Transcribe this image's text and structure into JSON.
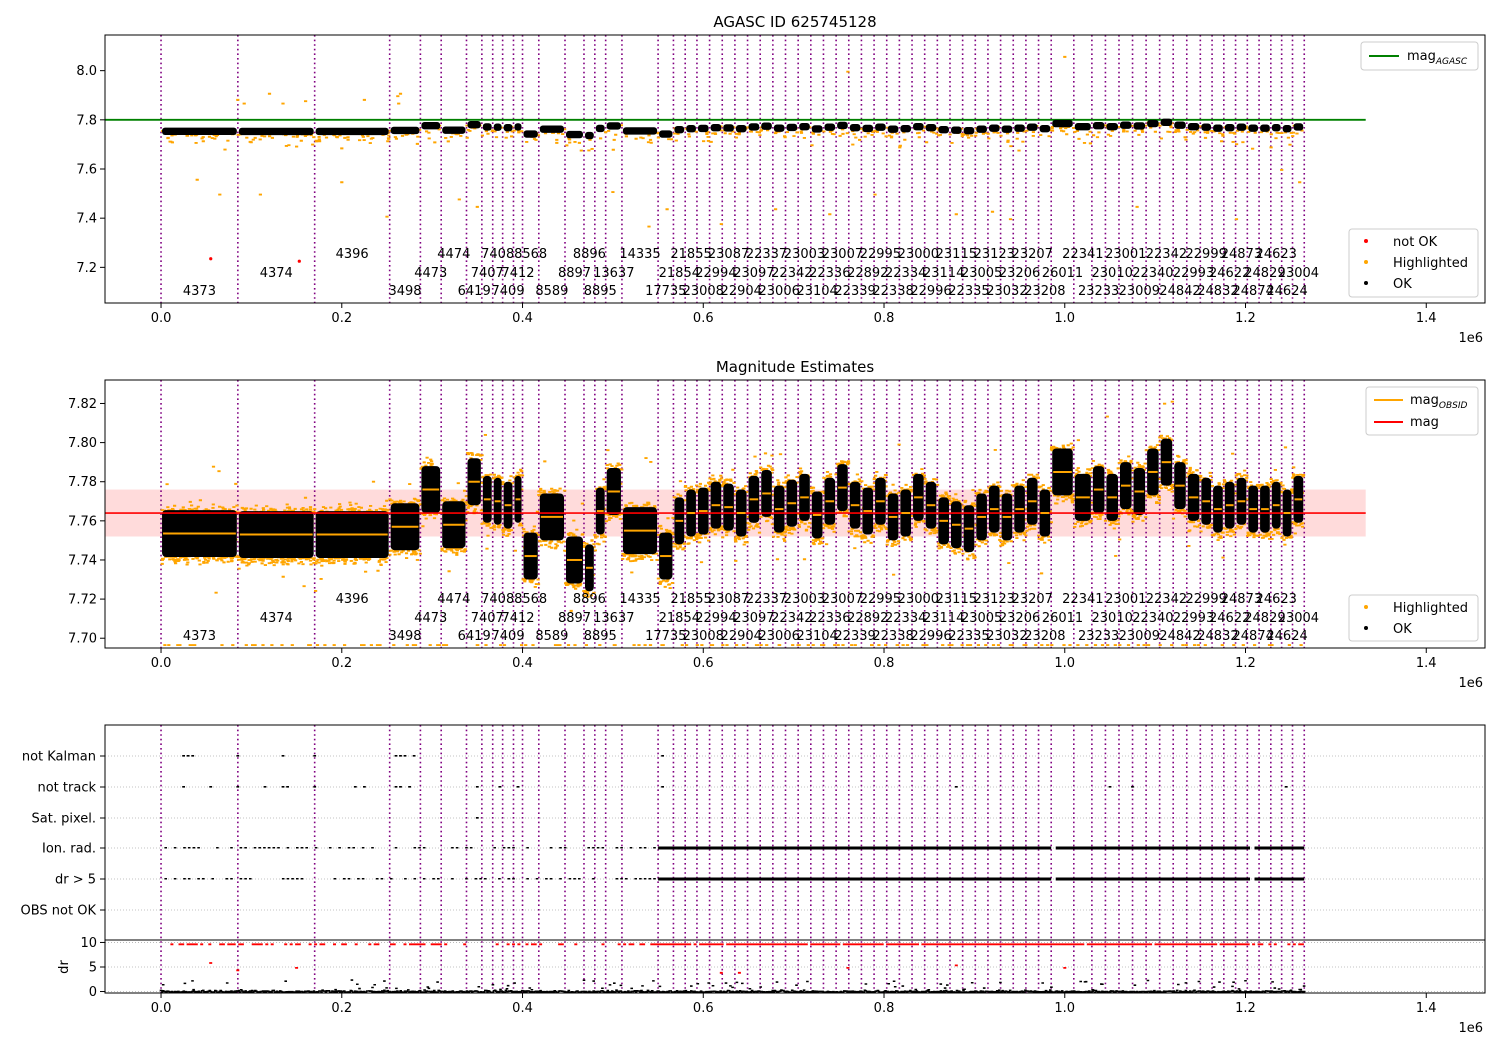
{
  "chart_data": [
    {
      "type": "scatter",
      "title": "AGASC ID 625745128",
      "xlim": [
        -62000,
        1465000
      ],
      "ylim": [
        7.055,
        8.145
      ],
      "yticks": [
        7.2,
        7.4,
        7.6,
        7.8,
        8.0
      ],
      "ytick_labels": [
        "7.2",
        "7.4",
        "7.6",
        "7.8",
        "8.0"
      ],
      "xticks": [
        0,
        200000,
        400000,
        600000,
        800000,
        1000000,
        1200000,
        1400000
      ],
      "xtick_labels": [
        "0.0",
        "0.2",
        "0.4",
        "0.6",
        "0.8",
        "1.0",
        "1.2",
        "1.4"
      ],
      "x_offset_label": "1e6",
      "legend_upper": {
        "placement": "upper-right",
        "entries": [
          {
            "label": "mag",
            "sub": "AGASC",
            "color": "#008000"
          }
        ]
      },
      "legend_lower": {
        "placement": "lower-right",
        "entries": [
          {
            "label": "not OK",
            "color": "#ff0000"
          },
          {
            "label": "Highlighted",
            "color": "#ffa500"
          },
          {
            "label": "OK",
            "color": "#000000"
          }
        ]
      },
      "mag_agasc": 7.8,
      "mag_agasc_xrange": [
        -62000,
        1333000
      ],
      "not_ok_points": [
        [
          55000,
          7.235
        ],
        [
          153000,
          7.225
        ]
      ],
      "highlight_outliers": [
        [
          85000,
          7.885
        ],
        [
          92000,
          7.87
        ],
        [
          120000,
          7.91
        ],
        [
          135000,
          7.87
        ],
        [
          160000,
          7.88
        ],
        [
          225000,
          7.885
        ],
        [
          262000,
          7.9
        ],
        [
          263000,
          7.87
        ],
        [
          265000,
          7.91
        ],
        [
          760000,
          8.0
        ],
        [
          1000000,
          8.06
        ],
        [
          40000,
          7.56
        ],
        [
          65000,
          7.5
        ],
        [
          110000,
          7.5
        ],
        [
          200000,
          7.55
        ],
        [
          250000,
          7.41
        ],
        [
          330000,
          7.48
        ],
        [
          350000,
          7.45
        ],
        [
          500000,
          7.51
        ],
        [
          540000,
          7.37
        ],
        [
          560000,
          7.44
        ],
        [
          620000,
          7.38
        ],
        [
          680000,
          7.44
        ],
        [
          740000,
          7.42
        ],
        [
          790000,
          7.5
        ],
        [
          880000,
          7.42
        ],
        [
          920000,
          7.43
        ],
        [
          940000,
          7.4
        ],
        [
          1080000,
          7.45
        ],
        [
          1190000,
          7.4
        ],
        [
          1240000,
          7.6
        ],
        [
          1260000,
          7.55
        ]
      ]
    },
    {
      "type": "scatter",
      "title": "Magnitude Estimates",
      "xlim": [
        -62000,
        1465000
      ],
      "ylim": [
        7.695,
        7.832
      ],
      "yticks": [
        7.7,
        7.72,
        7.74,
        7.76,
        7.78,
        7.8,
        7.82
      ],
      "ytick_labels": [
        "7.70",
        "7.72",
        "7.74",
        "7.76",
        "7.78",
        "7.80",
        "7.82"
      ],
      "xticks": [
        0,
        200000,
        400000,
        600000,
        800000,
        1000000,
        1200000,
        1400000
      ],
      "xtick_labels": [
        "0.0",
        "0.2",
        "0.4",
        "0.6",
        "0.8",
        "1.0",
        "1.2",
        "1.4"
      ],
      "x_offset_label": "1e6",
      "legend_upper": {
        "placement": "upper-right",
        "entries": [
          {
            "label": "mag",
            "sub": "OBSID",
            "color": "#ffa500"
          },
          {
            "label": "mag",
            "sub": "",
            "color": "#ff0000"
          }
        ]
      },
      "legend_lower": {
        "placement": "lower-right",
        "entries": [
          {
            "label": "Highlighted",
            "color": "#ffa500"
          },
          {
            "label": "OK",
            "color": "#000000"
          }
        ]
      },
      "mag": 7.764,
      "mag_band": [
        7.752,
        7.776
      ],
      "mag_xrange": [
        -62000,
        1333000
      ]
    },
    {
      "type": "scatter",
      "title": "",
      "xlim": [
        -62000,
        1465000
      ],
      "flag_rows": [
        "not Kalman",
        "not track",
        "Sat. pixel.",
        "Ion. rad.",
        "dr > 5",
        "OBS not OK"
      ],
      "dr_ylim": [
        -0.3,
        10.5
      ],
      "dr_yticks": [
        0,
        5,
        10
      ],
      "dr_ytick_labels": [
        "0",
        "5",
        "10"
      ],
      "dr_ylabel": "dr",
      "xticks": [
        0,
        200000,
        400000,
        600000,
        800000,
        1000000,
        1200000,
        1400000
      ],
      "xtick_labels": [
        "0.0",
        "0.2",
        "0.4",
        "0.6",
        "0.8",
        "1.0",
        "1.2",
        "1.4"
      ],
      "x_offset_label": "1e6"
    }
  ],
  "observations": [
    {
      "obsid": "4373",
      "start": 0,
      "end": 85000,
      "mag": 7.7535,
      "row": 0
    },
    {
      "obsid": "4374",
      "start": 85000,
      "end": 170000,
      "mag": 7.753,
      "row": 1
    },
    {
      "obsid": "4396",
      "start": 170000,
      "end": 253000,
      "mag": 7.753,
      "row": 2
    },
    {
      "obsid": "3498",
      "start": 253000,
      "end": 287000,
      "mag": 7.757,
      "row": 0
    },
    {
      "obsid": "4473",
      "start": 287000,
      "end": 310000,
      "mag": 7.776,
      "row": 1
    },
    {
      "obsid": "4474",
      "start": 310000,
      "end": 338000,
      "mag": 7.758,
      "row": 2
    },
    {
      "obsid": "6419",
      "start": 338000,
      "end": 355000,
      "mag": 7.78,
      "row": 0
    },
    {
      "obsid": "7407",
      "start": 355000,
      "end": 367000,
      "mag": 7.771,
      "row": 1
    },
    {
      "obsid": "7408",
      "start": 367000,
      "end": 378000,
      "mag": 7.77,
      "row": 2
    },
    {
      "obsid": "7409",
      "start": 378000,
      "end": 390000,
      "mag": 7.768,
      "row": 0
    },
    {
      "obsid": "7412",
      "start": 390000,
      "end": 400000,
      "mag": 7.771,
      "row": 1
    },
    {
      "obsid": "8568",
      "start": 400000,
      "end": 418000,
      "mag": 7.742,
      "row": 2
    },
    {
      "obsid": "8589",
      "start": 418000,
      "end": 447000,
      "mag": 7.762,
      "row": 0
    },
    {
      "obsid": "8897",
      "start": 447000,
      "end": 468000,
      "mag": 7.74,
      "row": 1
    },
    {
      "obsid": "8896",
      "start": 468000,
      "end": 480000,
      "mag": 7.736,
      "row": 2
    },
    {
      "obsid": "8895",
      "start": 480000,
      "end": 492000,
      "mag": 7.765,
      "row": 0
    },
    {
      "obsid": "13637",
      "start": 492000,
      "end": 510000,
      "mag": 7.775,
      "row": 1
    },
    {
      "obsid": "14335",
      "start": 510000,
      "end": 550000,
      "mag": 7.755,
      "row": 2
    },
    {
      "obsid": "17735",
      "start": 550000,
      "end": 567000,
      "mag": 7.742,
      "row": 0
    },
    {
      "obsid": "21854",
      "start": 567000,
      "end": 580000,
      "mag": 7.76,
      "row": 1
    },
    {
      "obsid": "21855",
      "start": 580000,
      "end": 593000,
      "mag": 7.764,
      "row": 2
    },
    {
      "obsid": "23008",
      "start": 593000,
      "end": 607000,
      "mag": 7.765,
      "row": 0
    },
    {
      "obsid": "22994",
      "start": 607000,
      "end": 621000,
      "mag": 7.768,
      "row": 1
    },
    {
      "obsid": "23087",
      "start": 621000,
      "end": 635000,
      "mag": 7.767,
      "row": 2
    },
    {
      "obsid": "22904",
      "start": 635000,
      "end": 649000,
      "mag": 7.764,
      "row": 0
    },
    {
      "obsid": "23097",
      "start": 649000,
      "end": 663000,
      "mag": 7.771,
      "row": 1
    },
    {
      "obsid": "22337",
      "start": 663000,
      "end": 677000,
      "mag": 7.774,
      "row": 2
    },
    {
      "obsid": "23006",
      "start": 677000,
      "end": 691000,
      "mag": 7.766,
      "row": 0
    },
    {
      "obsid": "22342",
      "start": 691000,
      "end": 705000,
      "mag": 7.769,
      "row": 1
    },
    {
      "obsid": "23003",
      "start": 705000,
      "end": 719000,
      "mag": 7.772,
      "row": 2
    },
    {
      "obsid": "23104",
      "start": 719000,
      "end": 733000,
      "mag": 7.763,
      "row": 0
    },
    {
      "obsid": "22336",
      "start": 733000,
      "end": 747000,
      "mag": 7.77,
      "row": 1
    },
    {
      "obsid": "23007",
      "start": 747000,
      "end": 761000,
      "mag": 7.777,
      "row": 2
    },
    {
      "obsid": "22339",
      "start": 761000,
      "end": 775000,
      "mag": 7.768,
      "row": 0
    },
    {
      "obsid": "22892",
      "start": 775000,
      "end": 789000,
      "mag": 7.765,
      "row": 1
    },
    {
      "obsid": "22995",
      "start": 789000,
      "end": 803000,
      "mag": 7.77,
      "row": 2
    },
    {
      "obsid": "22338",
      "start": 803000,
      "end": 817000,
      "mag": 7.762,
      "row": 0
    },
    {
      "obsid": "22334",
      "start": 817000,
      "end": 831000,
      "mag": 7.764,
      "row": 1
    },
    {
      "obsid": "23000",
      "start": 831000,
      "end": 845000,
      "mag": 7.772,
      "row": 2
    },
    {
      "obsid": "22996",
      "start": 845000,
      "end": 859000,
      "mag": 7.768,
      "row": 0
    },
    {
      "obsid": "23114",
      "start": 859000,
      "end": 873000,
      "mag": 7.76,
      "row": 1
    },
    {
      "obsid": "23115",
      "start": 873000,
      "end": 887000,
      "mag": 7.758,
      "row": 2
    },
    {
      "obsid": "22335",
      "start": 887000,
      "end": 901000,
      "mag": 7.756,
      "row": 0
    },
    {
      "obsid": "23005",
      "start": 901000,
      "end": 915000,
      "mag": 7.762,
      "row": 1
    },
    {
      "obsid": "23123",
      "start": 915000,
      "end": 929000,
      "mag": 7.766,
      "row": 2
    },
    {
      "obsid": "23032",
      "start": 929000,
      "end": 943000,
      "mag": 7.762,
      "row": 0
    },
    {
      "obsid": "23206",
      "start": 943000,
      "end": 957000,
      "mag": 7.766,
      "row": 1
    },
    {
      "obsid": "23207",
      "start": 957000,
      "end": 971000,
      "mag": 7.77,
      "row": 2
    },
    {
      "obsid": "23208",
      "start": 971000,
      "end": 985000,
      "mag": 7.764,
      "row": 0
    },
    {
      "obsid": "26011",
      "start": 985000,
      "end": 1010000,
      "mag": 7.785,
      "row": 1
    },
    {
      "obsid": "22341",
      "start": 1010000,
      "end": 1030000,
      "mag": 7.772,
      "row": 2
    },
    {
      "obsid": "23233",
      "start": 1030000,
      "end": 1045000,
      "mag": 7.776,
      "row": 0
    },
    {
      "obsid": "23010",
      "start": 1045000,
      "end": 1060000,
      "mag": 7.772,
      "row": 1
    },
    {
      "obsid": "23001",
      "start": 1060000,
      "end": 1075000,
      "mag": 7.778,
      "row": 2
    },
    {
      "obsid": "23009",
      "start": 1075000,
      "end": 1090000,
      "mag": 7.775,
      "row": 0
    },
    {
      "obsid": "22340",
      "start": 1090000,
      "end": 1105000,
      "mag": 7.785,
      "row": 1
    },
    {
      "obsid": "22342",
      "start": 1105000,
      "end": 1120000,
      "mag": 7.79,
      "row": 2
    },
    {
      "obsid": "24842",
      "start": 1120000,
      "end": 1135000,
      "mag": 7.778,
      "row": 0
    },
    {
      "obsid": "22993",
      "start": 1135000,
      "end": 1150000,
      "mag": 7.772,
      "row": 1
    },
    {
      "obsid": "22999",
      "start": 1150000,
      "end": 1163000,
      "mag": 7.77,
      "row": 2
    },
    {
      "obsid": "24832",
      "start": 1163000,
      "end": 1176000,
      "mag": 7.766,
      "row": 0
    },
    {
      "obsid": "24622",
      "start": 1176000,
      "end": 1189000,
      "mag": 7.768,
      "row": 1
    },
    {
      "obsid": "24873",
      "start": 1189000,
      "end": 1202000,
      "mag": 7.77,
      "row": 2
    },
    {
      "obsid": "24874",
      "start": 1202000,
      "end": 1215000,
      "mag": 7.766,
      "row": 0
    },
    {
      "obsid": "24829",
      "start": 1215000,
      "end": 1228000,
      "mag": 7.766,
      "row": 1
    },
    {
      "obsid": "24623",
      "start": 1228000,
      "end": 1240000,
      "mag": 7.768,
      "row": 2
    },
    {
      "obsid": "24624",
      "start": 1240000,
      "end": 1252000,
      "mag": 7.764,
      "row": 0
    },
    {
      "obsid": "23004",
      "start": 1252000,
      "end": 1265000,
      "mag": 7.771,
      "row": 1
    }
  ],
  "colors": {
    "ok": "#000000",
    "highlighted": "#ffa500",
    "not_ok": "#ff0000",
    "mag_agasc": "#008000",
    "mag": "#ff0000",
    "mag_band": "#ffcccc",
    "obs_divider": "#800080",
    "grid": "#b0b0b0"
  }
}
